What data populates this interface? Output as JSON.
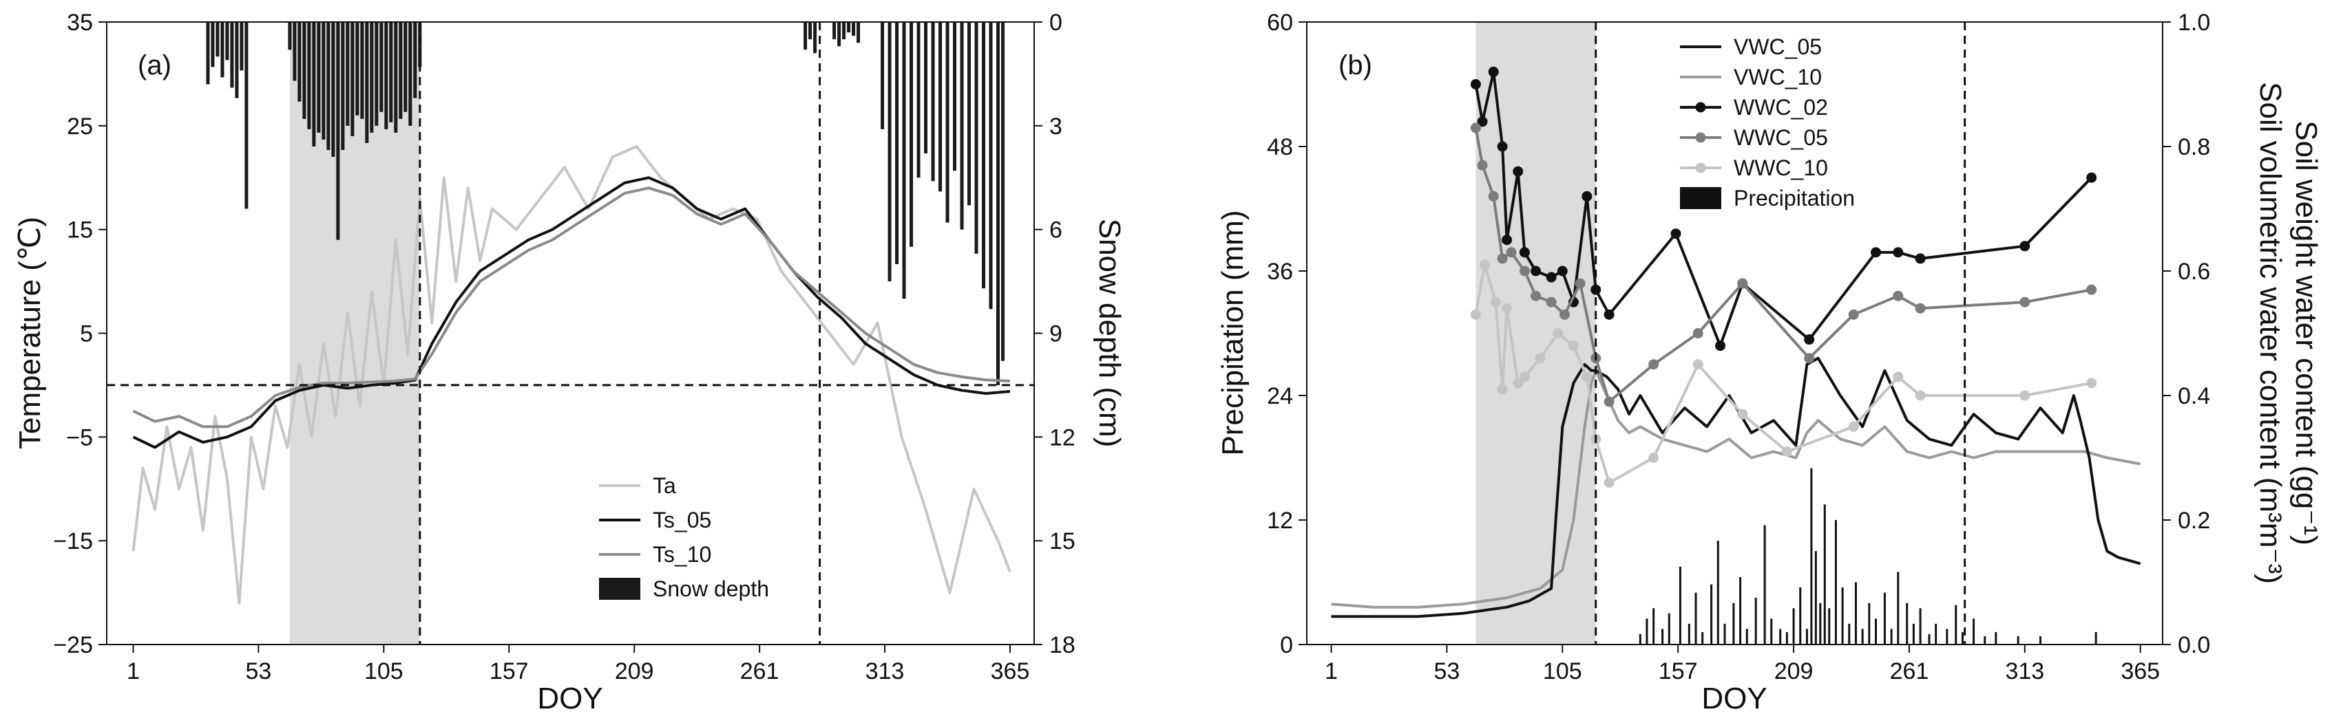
{
  "colors": {
    "ta": "#c6c6c6",
    "ts_05": "#111111",
    "ts_10": "#8a8a8a",
    "snow": "#1a1a1a",
    "shade": "#dcdcdc",
    "vwc_05": "#111111",
    "vwc_10": "#9a9a9a",
    "wwc_02": "#111111",
    "wwc_05": "#7c7c7c",
    "wwc_10": "#c4c4c4",
    "precip": "#111111"
  },
  "chart_data": [
    {
      "type": "line",
      "panel_label": "(a)",
      "xlabel": "DOY",
      "ylabel": "Temperature (℃)",
      "y2label": "Snow depth (cm)",
      "xlim": [
        -10,
        375
      ],
      "ylim": [
        -25,
        35
      ],
      "y2lim": [
        0,
        18
      ],
      "y2_inverted": true,
      "xticks": [
        1,
        53,
        105,
        157,
        209,
        261,
        313,
        365
      ],
      "yticks": [
        -25,
        -15,
        -5,
        5,
        15,
        25,
        35
      ],
      "y2ticks": [
        0,
        3,
        6,
        9,
        12,
        15,
        18
      ],
      "shaded_region": [
        66,
        120
      ],
      "vlines": [
        120,
        286
      ],
      "hline": 0,
      "legend": {
        "position": "lower-right",
        "entries": [
          {
            "label": "Ta",
            "key": "ta",
            "kind": "line"
          },
          {
            "label": "Ts_05",
            "key": "ts_05",
            "kind": "line"
          },
          {
            "label": "Ts_10",
            "key": "ts_10",
            "kind": "line"
          },
          {
            "label": "Snow depth",
            "key": "snow",
            "kind": "bar"
          }
        ]
      },
      "series": [
        {
          "key": "ta",
          "x": [
            1,
            5,
            10,
            15,
            20,
            25,
            30,
            35,
            40,
            45,
            50,
            55,
            60,
            65,
            70,
            75,
            80,
            85,
            90,
            95,
            100,
            105,
            110,
            115,
            120,
            125,
            130,
            135,
            140,
            145,
            150,
            160,
            170,
            180,
            190,
            200,
            210,
            220,
            230,
            240,
            250,
            260,
            270,
            280,
            290,
            300,
            310,
            320,
            330,
            340,
            350,
            360,
            365
          ],
          "y": [
            -16,
            -8,
            -12,
            -4,
            -10,
            -6,
            -14,
            -3,
            -9,
            -21,
            -5,
            -10,
            -2,
            -6,
            2,
            -5,
            4,
            -3,
            7,
            -2,
            9,
            0,
            14,
            3,
            18,
            6,
            20,
            10,
            19,
            12,
            17,
            15,
            18,
            21,
            17,
            22,
            23,
            20,
            18,
            16,
            17,
            16,
            11,
            8,
            5,
            2,
            6,
            -5,
            -12,
            -20,
            -10,
            -15,
            -18
          ]
        },
        {
          "key": "ts_05",
          "x": [
            1,
            10,
            20,
            30,
            40,
            50,
            60,
            70,
            80,
            90,
            100,
            110,
            118,
            125,
            135,
            145,
            155,
            165,
            175,
            185,
            195,
            205,
            215,
            225,
            235,
            245,
            255,
            265,
            275,
            285,
            295,
            305,
            315,
            325,
            335,
            345,
            355,
            365
          ],
          "y": [
            -5,
            -6,
            -4.5,
            -5.5,
            -5,
            -4,
            -1.5,
            -0.5,
            0,
            -0.3,
            0,
            0.2,
            0.5,
            4,
            8,
            11,
            12.5,
            14,
            15,
            16.5,
            18,
            19.5,
            20,
            19,
            17,
            16,
            17,
            14,
            11,
            8.5,
            6.5,
            4,
            2.5,
            1,
            0,
            -0.5,
            -0.8,
            -0.6
          ]
        },
        {
          "key": "ts_10",
          "x": [
            1,
            10,
            20,
            30,
            40,
            50,
            60,
            70,
            80,
            90,
            100,
            110,
            118,
            125,
            135,
            145,
            155,
            165,
            175,
            185,
            195,
            205,
            215,
            225,
            235,
            245,
            255,
            265,
            275,
            285,
            295,
            305,
            315,
            325,
            335,
            345,
            355,
            365
          ],
          "y": [
            -2.5,
            -3.5,
            -3,
            -4,
            -4,
            -3,
            -1,
            -0.2,
            0.2,
            0.2,
            0.3,
            0.4,
            0.6,
            3,
            7,
            10,
            11.5,
            13,
            14,
            15.5,
            17,
            18.5,
            19,
            18.3,
            16.5,
            15.5,
            16.5,
            14,
            11,
            9,
            7,
            5,
            3.5,
            2,
            1.2,
            0.8,
            0.5,
            0.4
          ]
        }
      ],
      "snow_depth": {
        "key": "snow",
        "x": [
          32,
          34,
          36,
          38,
          40,
          42,
          44,
          46,
          48,
          66,
          68,
          70,
          72,
          74,
          76,
          78,
          80,
          82,
          84,
          86,
          88,
          90,
          92,
          94,
          96,
          98,
          100,
          102,
          104,
          106,
          108,
          110,
          112,
          114,
          116,
          118,
          120,
          280,
          282,
          284,
          292,
          294,
          296,
          298,
          300,
          302,
          312,
          315,
          318,
          321,
          324,
          327,
          330,
          333,
          336,
          339,
          342,
          345,
          348,
          351,
          354,
          357,
          360,
          362
        ],
        "values": [
          1.8,
          1.3,
          1.0,
          1.6,
          1.1,
          1.9,
          2.2,
          1.4,
          5.4,
          0.8,
          1.7,
          2.3,
          2.8,
          3.1,
          3.6,
          3.2,
          3.4,
          3.7,
          3.9,
          6.3,
          3.7,
          3.0,
          3.3,
          2.7,
          2.8,
          3.5,
          3.2,
          3.0,
          2.6,
          3.1,
          2.9,
          3.2,
          2.8,
          2.6,
          3.0,
          2.2,
          1.3,
          0.8,
          0.5,
          0.9,
          0.5,
          0.7,
          0.5,
          0.3,
          0.4,
          0.6,
          3.1,
          7.5,
          7.0,
          8.0,
          6.5,
          4.5,
          3.8,
          4.6,
          4.9,
          5.8,
          4.3,
          6.0,
          5.3,
          6.7,
          7.7,
          8.3,
          10.5,
          9.8
        ]
      }
    },
    {
      "type": "line",
      "panel_label": "(b)",
      "xlabel": "DOY",
      "ylabel": "Precipitation (mm)",
      "y2label_lines": [
        "Soil volumetric water content (m³m⁻³)",
        "Soil weight water content (gg⁻¹)"
      ],
      "xlim": [
        -10,
        375
      ],
      "ylim": [
        0,
        60
      ],
      "y2lim": [
        0,
        1.0
      ],
      "xticks": [
        1,
        53,
        105,
        157,
        209,
        261,
        313,
        365
      ],
      "yticks": [
        0,
        12,
        24,
        36,
        48,
        60
      ],
      "y2ticks": [
        "0.0",
        "0.2",
        "0.4",
        "0.6",
        "0.8",
        "1.0"
      ],
      "shaded_region": [
        66,
        120
      ],
      "vlines": [
        120,
        286
      ],
      "legend": {
        "position": "top",
        "entries": [
          {
            "label": "VWC_05",
            "key": "vwc_05",
            "kind": "line"
          },
          {
            "label": "VWC_10",
            "key": "vwc_10",
            "kind": "line"
          },
          {
            "label": "WWC_02",
            "key": "wwc_02",
            "kind": "marker-line"
          },
          {
            "label": "WWC_05",
            "key": "wwc_05",
            "kind": "marker-line"
          },
          {
            "label": "WWC_10",
            "key": "wwc_10",
            "kind": "marker-line"
          },
          {
            "label": "Precipitation",
            "key": "precip",
            "kind": "bar"
          }
        ]
      },
      "series": [
        {
          "key": "vwc_10",
          "x": [
            1,
            20,
            40,
            60,
            80,
            95,
            105,
            110,
            115,
            118,
            120,
            125,
            130,
            135,
            140,
            150,
            160,
            170,
            180,
            190,
            200,
            210,
            215,
            220,
            230,
            240,
            250,
            260,
            270,
            280,
            290,
            300,
            310,
            320,
            330,
            340,
            350,
            365
          ],
          "y": [
            0.065,
            0.06,
            0.06,
            0.065,
            0.075,
            0.09,
            0.12,
            0.2,
            0.35,
            0.42,
            0.44,
            0.4,
            0.36,
            0.34,
            0.35,
            0.33,
            0.32,
            0.31,
            0.33,
            0.3,
            0.31,
            0.3,
            0.34,
            0.36,
            0.33,
            0.32,
            0.35,
            0.31,
            0.3,
            0.31,
            0.3,
            0.31,
            0.31,
            0.31,
            0.31,
            0.31,
            0.3,
            0.29
          ]
        },
        {
          "key": "vwc_05",
          "x": [
            1,
            20,
            40,
            60,
            70,
            80,
            90,
            100,
            102,
            105,
            110,
            115,
            118,
            120,
            125,
            130,
            135,
            140,
            150,
            160,
            170,
            180,
            190,
            200,
            210,
            215,
            220,
            230,
            240,
            250,
            260,
            270,
            280,
            290,
            300,
            310,
            320,
            330,
            335,
            338,
            342,
            346,
            350,
            355,
            365
          ],
          "y": [
            0.045,
            0.045,
            0.045,
            0.05,
            0.055,
            0.06,
            0.07,
            0.09,
            0.2,
            0.35,
            0.42,
            0.45,
            0.44,
            0.44,
            0.43,
            0.41,
            0.37,
            0.4,
            0.34,
            0.38,
            0.35,
            0.4,
            0.34,
            0.36,
            0.32,
            0.45,
            0.46,
            0.4,
            0.35,
            0.44,
            0.36,
            0.33,
            0.32,
            0.37,
            0.34,
            0.33,
            0.38,
            0.34,
            0.4,
            0.36,
            0.3,
            0.2,
            0.15,
            0.14,
            0.13
          ]
        }
      ],
      "wwc": [
        {
          "key": "wwc_02",
          "x": [
            66,
            69,
            74,
            78,
            80,
            85,
            88,
            93,
            100,
            105,
            110,
            116,
            120,
            126,
            156,
            176,
            186,
            216,
            246,
            256,
            266,
            313,
            343
          ],
          "y": [
            0.9,
            0.84,
            0.92,
            0.8,
            0.65,
            0.76,
            0.63,
            0.6,
            0.59,
            0.6,
            0.55,
            0.72,
            0.57,
            0.53,
            0.66,
            0.48,
            0.58,
            0.49,
            0.63,
            0.63,
            0.62,
            0.64,
            0.75
          ]
        },
        {
          "key": "wwc_05",
          "x": [
            66,
            69,
            74,
            78,
            82,
            88,
            93,
            100,
            106,
            113,
            120,
            126,
            146,
            166,
            186,
            216,
            236,
            256,
            266,
            313,
            343
          ],
          "y": [
            0.83,
            0.77,
            0.72,
            0.62,
            0.63,
            0.6,
            0.56,
            0.55,
            0.53,
            0.58,
            0.46,
            0.39,
            0.45,
            0.5,
            0.58,
            0.46,
            0.53,
            0.56,
            0.54,
            0.55,
            0.57
          ]
        },
        {
          "key": "wwc_10",
          "x": [
            66,
            70,
            75,
            78,
            80,
            85,
            88,
            95,
            103,
            110,
            116,
            120,
            126,
            146,
            166,
            186,
            206,
            236,
            256,
            266,
            313,
            343
          ],
          "y": [
            0.53,
            0.61,
            0.55,
            0.41,
            0.54,
            0.42,
            0.43,
            0.46,
            0.5,
            0.48,
            0.43,
            0.33,
            0.26,
            0.3,
            0.45,
            0.37,
            0.31,
            0.35,
            0.43,
            0.4,
            0.4,
            0.42
          ]
        }
      ],
      "precipitation": {
        "key": "precip",
        "x": [
          140,
          143,
          146,
          150,
          153,
          158,
          162,
          165,
          168,
          172,
          175,
          178,
          182,
          185,
          188,
          192,
          196,
          199,
          203,
          206,
          209,
          212,
          215,
          217,
          219,
          221,
          223,
          225,
          228,
          231,
          234,
          237,
          240,
          243,
          246,
          250,
          253,
          256,
          260,
          263,
          266,
          270,
          273,
          278,
          282,
          285,
          290,
          295,
          300,
          310,
          320,
          345
        ],
        "values": [
          1.0,
          2.5,
          3.5,
          1.5,
          3.0,
          7.5,
          2.0,
          5.0,
          1.2,
          5.8,
          10.0,
          2.0,
          4.0,
          6.5,
          1.5,
          4.5,
          11.5,
          2.5,
          1.5,
          1.2,
          3.5,
          5.5,
          1.5,
          17.0,
          9.0,
          4.0,
          13.5,
          3.5,
          12.0,
          5.5,
          2.0,
          6.0,
          1.5,
          4.0,
          2.5,
          5.0,
          1.5,
          7.0,
          4.0,
          2.0,
          3.5,
          1.0,
          2.0,
          1.5,
          3.8,
          1.2,
          2.5,
          0.8,
          1.2,
          0.8,
          0.8,
          1.2
        ]
      }
    }
  ]
}
